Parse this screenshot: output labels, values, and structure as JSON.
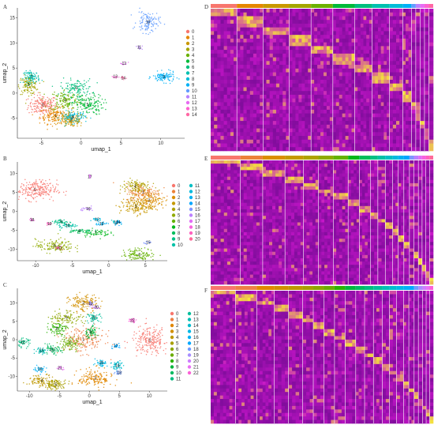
{
  "palette15": [
    "#F8766D",
    "#E58700",
    "#C99800",
    "#A3A500",
    "#6BB100",
    "#00BA38",
    "#00BF7D",
    "#00C0AF",
    "#00BCD8",
    "#00B0F6",
    "#619CFF",
    "#B983FF",
    "#E76BF3",
    "#FD61D1",
    "#FF67A4"
  ],
  "palette21": [
    "#F8766D",
    "#EC8239",
    "#DB8E00",
    "#C59900",
    "#AEA200",
    "#8FAA00",
    "#64B200",
    "#00B81B",
    "#00BD5C",
    "#00C086",
    "#00C1A7",
    "#00BFC4",
    "#00BADE",
    "#00B2F3",
    "#00A6FF",
    "#7F96FF",
    "#BC81FF",
    "#E26EF7",
    "#F863DF",
    "#FF62BF",
    "#FF6A9A"
  ],
  "palette23": [
    "#F8766D",
    "#EE7F46",
    "#E18700",
    "#D18F00",
    "#BE9800",
    "#A89F00",
    "#8DA600",
    "#6AAC00",
    "#2BB200",
    "#00B63C",
    "#00BA61",
    "#00BC7F",
    "#00BE9B",
    "#00BEB5",
    "#00BCCE",
    "#00B8E5",
    "#00B1F6",
    "#00A7FF",
    "#6E9BFF",
    "#A78DFF",
    "#CE7DFF",
    "#EA71F4",
    "#FB61D7"
  ],
  "panels": {
    "A": {
      "letter": "A",
      "xlabel": "umap_1",
      "ylabel": "umap_2",
      "xticks": [
        "-5",
        "0",
        "5",
        "10"
      ],
      "yticks": [
        "15",
        "10",
        "5",
        "0",
        "-5"
      ],
      "legend": [
        "0",
        "1",
        "2",
        "3",
        "4",
        "5",
        "6",
        "7",
        "8",
        "9",
        "10",
        "11",
        "12",
        "13",
        "14"
      ]
    },
    "B": {
      "letter": "B",
      "xlabel": "umap_1",
      "ylabel": "umap_2",
      "xticks": [
        "-10",
        "-5",
        "0",
        "5"
      ],
      "yticks": [
        "10",
        "5",
        "0",
        "-5",
        "-10"
      ],
      "legend": [
        "0",
        "1",
        "2",
        "3",
        "4",
        "5",
        "6",
        "7",
        "8",
        "9",
        "10",
        "11",
        "12",
        "13",
        "14",
        "15",
        "16",
        "17",
        "18",
        "19",
        "20"
      ]
    },
    "C": {
      "letter": "C",
      "xlabel": "umap_1",
      "ylabel": "umap_2",
      "xticks": [
        "-10",
        "-5",
        "0",
        "5",
        "10"
      ],
      "yticks": [
        "10",
        "5",
        "0",
        "-5",
        "-10"
      ],
      "legend": [
        "0",
        "1",
        "2",
        "3",
        "4",
        "5",
        "6",
        "7",
        "8",
        "9",
        "10",
        "11",
        "12",
        "13",
        "14",
        "15",
        "16",
        "17",
        "18",
        "19",
        "20",
        "21",
        "22"
      ]
    },
    "D": {
      "letter": "D"
    },
    "E": {
      "letter": "E"
    },
    "F": {
      "letter": "F"
    }
  },
  "chart_data": [
    {
      "type": "scatter",
      "panel": "A",
      "xlabel": "umap_1",
      "ylabel": "umap_2",
      "xlim": [
        -8,
        13
      ],
      "ylim": [
        -9,
        17
      ],
      "legend_position": "right",
      "clusters": [
        {
          "name": "0",
          "x": -4.8,
          "y": -2.4,
          "sx": 0.9,
          "sy": 1.0,
          "n": 180
        },
        {
          "name": "1",
          "x": -3.2,
          "y": -4.5,
          "sx": 1.0,
          "sy": 0.8,
          "n": 160
        },
        {
          "name": "2",
          "x": -1.2,
          "y": -5.4,
          "sx": 0.8,
          "sy": 0.7,
          "n": 140
        },
        {
          "name": "3",
          "x": -6.6,
          "y": 1.6,
          "sx": 0.6,
          "sy": 0.9,
          "n": 130
        },
        {
          "name": "4",
          "x": -2.0,
          "y": -1.4,
          "sx": 1.0,
          "sy": 1.1,
          "n": 140
        },
        {
          "name": "5",
          "x": 0.8,
          "y": -2.3,
          "sx": 1.0,
          "sy": 1.0,
          "n": 150
        },
        {
          "name": "6",
          "x": -0.6,
          "y": 1.0,
          "sx": 1.0,
          "sy": 0.9,
          "n": 120
        },
        {
          "name": "7",
          "x": -6.2,
          "y": 3.2,
          "sx": 0.5,
          "sy": 0.6,
          "n": 90
        },
        {
          "name": "8",
          "x": -1.0,
          "y": -4.8,
          "sx": 0.8,
          "sy": 0.6,
          "n": 90
        },
        {
          "name": "9",
          "x": 10.4,
          "y": 3.2,
          "sx": 0.7,
          "sy": 0.5,
          "n": 110
        },
        {
          "name": "10",
          "x": 8.4,
          "y": 14.2,
          "sx": 0.7,
          "sy": 1.1,
          "n": 120
        },
        {
          "name": "11",
          "x": 7.3,
          "y": 9.1,
          "sx": 0.2,
          "sy": 0.2,
          "n": 10
        },
        {
          "name": "12",
          "x": 5.4,
          "y": 5.9,
          "sx": 0.25,
          "sy": 0.2,
          "n": 10
        },
        {
          "name": "13",
          "x": 4.3,
          "y": 3.3,
          "sx": 0.3,
          "sy": 0.2,
          "n": 10
        },
        {
          "name": "14",
          "x": 5.3,
          "y": 3.0,
          "sx": 0.3,
          "sy": 0.2,
          "n": 10
        }
      ]
    },
    {
      "type": "scatter",
      "panel": "B",
      "xlabel": "umap_1",
      "ylabel": "umap_2",
      "xlim": [
        -12.5,
        8
      ],
      "ylim": [
        -13,
        13
      ],
      "legend_position": "right",
      "clusters": [
        {
          "name": "0",
          "x": -10.1,
          "y": 5.6,
          "sx": 1.5,
          "sy": 1.3,
          "n": 240
        },
        {
          "name": "1",
          "x": 4.7,
          "y": 5.0,
          "sx": 1.2,
          "sy": 1.2,
          "n": 160
        },
        {
          "name": "2",
          "x": 5.5,
          "y": 2.8,
          "sx": 1.1,
          "sy": 1.1,
          "n": 140
        },
        {
          "name": "3",
          "x": 3.7,
          "y": 1.2,
          "sx": 1.1,
          "sy": 1.0,
          "n": 130
        },
        {
          "name": "4",
          "x": 3.6,
          "y": 6.6,
          "sx": 1.0,
          "sy": 1.0,
          "n": 110
        },
        {
          "name": "5",
          "x": -7.4,
          "y": -9.1,
          "sx": 1.3,
          "sy": 0.9,
          "n": 140
        },
        {
          "name": "6",
          "x": 4.2,
          "y": -11.4,
          "sx": 1.1,
          "sy": 0.8,
          "n": 120
        },
        {
          "name": "7",
          "x": -1.8,
          "y": -5.7,
          "sx": 1.0,
          "sy": 0.5,
          "n": 60
        },
        {
          "name": "8",
          "x": -4.0,
          "y": -5.2,
          "sx": 0.9,
          "sy": 0.3,
          "n": 50
        },
        {
          "name": "9",
          "x": -6.5,
          "y": -2.8,
          "sx": 0.5,
          "sy": 0.3,
          "n": 40
        },
        {
          "name": "10",
          "x": -5.6,
          "y": -3.7,
          "sx": 0.8,
          "sy": 0.3,
          "n": 40
        },
        {
          "name": "11",
          "x": 1.0,
          "y": -3.0,
          "sx": 0.3,
          "sy": 0.3,
          "n": 20
        },
        {
          "name": "12",
          "x": -1.6,
          "y": -2.2,
          "sx": 0.3,
          "sy": 0.3,
          "n": 20
        },
        {
          "name": "13",
          "x": -1.0,
          "y": -3.3,
          "sx": 0.4,
          "sy": 0.3,
          "n": 25
        },
        {
          "name": "14",
          "x": 1.3,
          "y": -2.9,
          "sx": 0.3,
          "sy": 0.3,
          "n": 20
        },
        {
          "name": "15",
          "x": 5.4,
          "y": -8.2,
          "sx": 0.3,
          "sy": 0.2,
          "n": 12
        },
        {
          "name": "16",
          "x": -2.8,
          "y": 0.6,
          "sx": 0.5,
          "sy": 0.3,
          "n": 20
        },
        {
          "name": "17",
          "x": -2.6,
          "y": 9.1,
          "sx": 0.2,
          "sy": 0.2,
          "n": 10
        },
        {
          "name": "18",
          "x": -10.5,
          "y": -2.3,
          "sx": 0.2,
          "sy": 0.2,
          "n": 10
        },
        {
          "name": "19",
          "x": -8.1,
          "y": -3.3,
          "sx": 0.2,
          "sy": 0.2,
          "n": 10
        },
        {
          "name": "20",
          "x": -6.8,
          "y": -9.7,
          "sx": 0.3,
          "sy": 0.3,
          "n": 15
        }
      ]
    },
    {
      "type": "scatter",
      "panel": "C",
      "xlabel": "umap_1",
      "ylabel": "umap_2",
      "xlim": [
        -12,
        13
      ],
      "ylim": [
        -14,
        14
      ],
      "legend_position": "right",
      "clusters": [
        {
          "name": "0",
          "x": 10.1,
          "y": -0.2,
          "sx": 1.5,
          "sy": 1.8,
          "n": 220
        },
        {
          "name": "1",
          "x": -1.0,
          "y": 0.0,
          "sx": 1.8,
          "sy": 1.8,
          "n": 200
        },
        {
          "name": "2",
          "x": 1.0,
          "y": -10.6,
          "sx": 1.4,
          "sy": 1.3,
          "n": 160
        },
        {
          "name": "3",
          "x": -1.0,
          "y": 9.9,
          "sx": 1.2,
          "sy": 1.2,
          "n": 140
        },
        {
          "name": "4",
          "x": -7.9,
          "y": -11.2,
          "sx": 1.2,
          "sy": 0.8,
          "n": 100
        },
        {
          "name": "5",
          "x": -5.6,
          "y": -12.3,
          "sx": 0.9,
          "sy": 0.7,
          "n": 100
        },
        {
          "name": "6",
          "x": -3.8,
          "y": 6.0,
          "sx": 1.4,
          "sy": 1.0,
          "n": 100
        },
        {
          "name": "7",
          "x": -3.2,
          "y": -1.1,
          "sx": 0.9,
          "sy": 1.0,
          "n": 90
        },
        {
          "name": "8",
          "x": -5.4,
          "y": 3.0,
          "sx": 0.8,
          "sy": 0.9,
          "n": 80
        },
        {
          "name": "9",
          "x": 0.2,
          "y": 2.0,
          "sx": 0.6,
          "sy": 0.8,
          "n": 60
        },
        {
          "name": "10",
          "x": -6.2,
          "y": -2.8,
          "sx": 0.8,
          "sy": 0.6,
          "n": 60
        },
        {
          "name": "11",
          "x": -11.1,
          "y": -0.8,
          "sx": 0.6,
          "sy": 0.6,
          "n": 50
        },
        {
          "name": "12",
          "x": 0.8,
          "y": 6.0,
          "sx": 0.6,
          "sy": 0.6,
          "n": 50
        },
        {
          "name": "13",
          "x": -8.0,
          "y": -3.0,
          "sx": 0.5,
          "sy": 0.4,
          "n": 40
        },
        {
          "name": "14",
          "x": 4.7,
          "y": -7.1,
          "sx": 0.6,
          "sy": 0.8,
          "n": 50
        },
        {
          "name": "15",
          "x": 2.0,
          "y": -6.3,
          "sx": 0.5,
          "sy": 0.5,
          "n": 40
        },
        {
          "name": "16",
          "x": -8.2,
          "y": -8.1,
          "sx": 0.5,
          "sy": 0.4,
          "n": 30
        },
        {
          "name": "17",
          "x": 4.4,
          "y": -1.7,
          "sx": 0.4,
          "sy": 0.4,
          "n": 25
        },
        {
          "name": "18",
          "x": 5.0,
          "y": -9.0,
          "sx": 0.4,
          "sy": 0.3,
          "n": 20
        },
        {
          "name": "19",
          "x": 0.2,
          "y": 9.8,
          "sx": 0.3,
          "sy": 0.3,
          "n": 20
        },
        {
          "name": "20",
          "x": 1.2,
          "y": 8.8,
          "sx": 0.3,
          "sy": 0.3,
          "n": 15
        },
        {
          "name": "21",
          "x": -4.9,
          "y": -7.8,
          "sx": 0.3,
          "sy": 0.3,
          "n": 15
        },
        {
          "name": "22",
          "x": 7.2,
          "y": 5.2,
          "sx": 0.4,
          "sy": 0.4,
          "n": 25
        }
      ]
    },
    {
      "type": "heatmap",
      "panel": "D",
      "clusters": 15,
      "cluster_widths": [
        6,
        6,
        6,
        5,
        5,
        5,
        4,
        4,
        3,
        2,
        1,
        1,
        1,
        1,
        1
      ],
      "colors": [
        "#6B0A8E",
        "#C515C9",
        "#F5E33B"
      ]
    },
    {
      "type": "heatmap",
      "panel": "E",
      "clusters": 21,
      "cluster_widths": [
        8,
        6,
        6,
        5,
        4,
        4,
        4,
        3,
        3,
        2,
        2,
        2,
        1.5,
        1.5,
        1.5,
        1.2,
        1.2,
        1,
        1,
        1,
        1
      ],
      "colors": [
        "#6B0A8E",
        "#C515C9",
        "#F5E33B"
      ]
    },
    {
      "type": "heatmap",
      "panel": "F",
      "clusters": 23,
      "cluster_widths": [
        7,
        6,
        5,
        4,
        4,
        3,
        3,
        3,
        3,
        3,
        2.5,
        2.5,
        2.5,
        2,
        2,
        2,
        1.5,
        1.5,
        1.2,
        1.2,
        1,
        1,
        1
      ],
      "colors": [
        "#6B0A8E",
        "#C515C9",
        "#F5E33B"
      ]
    }
  ]
}
